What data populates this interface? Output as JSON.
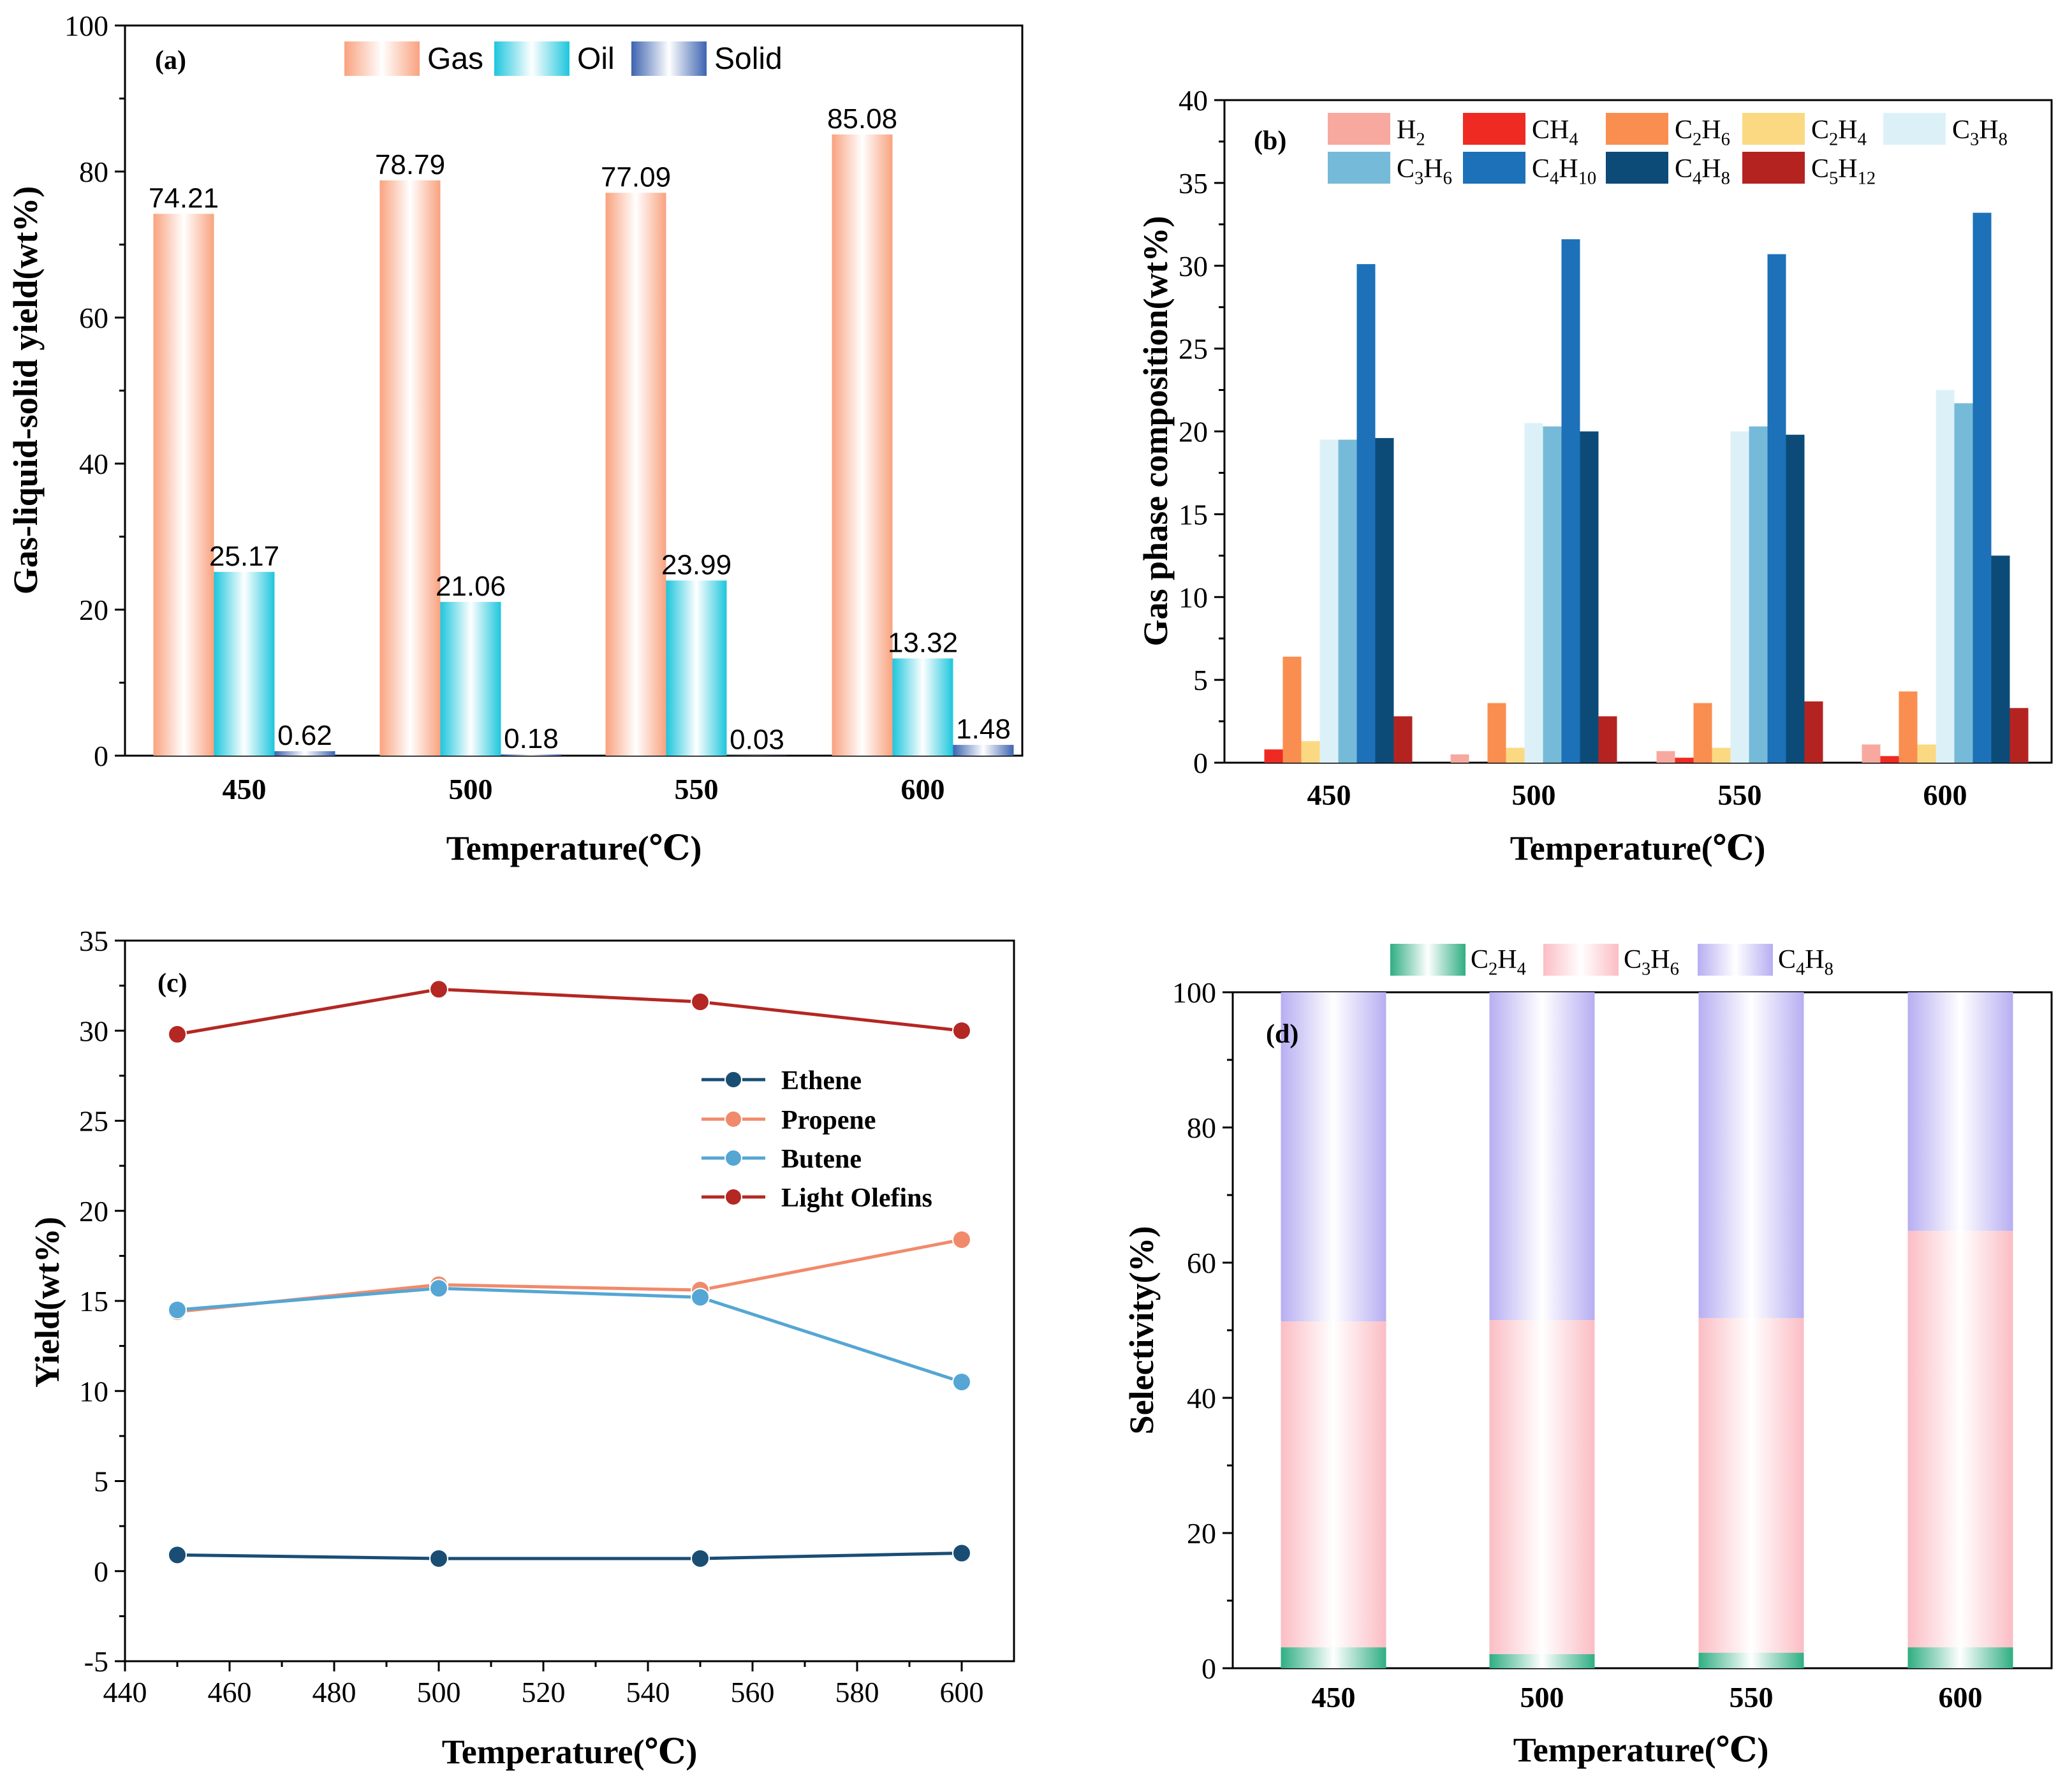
{
  "colors": {
    "gas": "#f9a27f",
    "oil": "#1ec6dd",
    "solid": "#3d64b0",
    "H2": "#f7a9a0",
    "CH4": "#ee2a22",
    "C2H6": "#f98e50",
    "C2H4": "#fbd983",
    "C3H8": "#dcf1f7",
    "C3H6": "#76bad9",
    "C4H10": "#1c71b8",
    "C4H8": "#0c4b78",
    "C5H12": "#b52321",
    "ethene": "#1a4d74",
    "propene": "#f08a6b",
    "butene": "#55a6d4",
    "light_olefins": "#b42723",
    "sel_c2h4": "#2fae82",
    "sel_c3h6": "#fbbdc4",
    "sel_c4h8": "#b7aef2"
  },
  "chart_data": [
    {
      "id": "a",
      "type": "bar",
      "panel_label": "(a)",
      "categories": [
        "450",
        "500",
        "550",
        "600"
      ],
      "series": [
        {
          "name": "Gas",
          "key": "gas",
          "values": [
            74.21,
            78.79,
            77.09,
            85.08
          ],
          "labels": [
            "74.21",
            "78.79",
            "77.09",
            "85.08"
          ]
        },
        {
          "name": "Oil",
          "key": "oil",
          "values": [
            25.17,
            21.06,
            23.99,
            13.32
          ],
          "labels": [
            "25.17",
            "21.06",
            "23.99",
            "13.32"
          ]
        },
        {
          "name": "Solid",
          "key": "solid",
          "values": [
            0.62,
            0.18,
            0.03,
            1.48
          ],
          "labels": [
            "0.62",
            "0.18",
            "0.03",
            "1.48"
          ]
        }
      ],
      "ylim": [
        0,
        100
      ],
      "yticks": [
        "0",
        "20",
        "40",
        "60",
        "80",
        "100"
      ],
      "xlabel": "Temperature(℃)",
      "ylabel": "Gas-liquid-solid yield(wt%)"
    },
    {
      "id": "b",
      "type": "bar",
      "panel_label": "(b)",
      "categories": [
        "450",
        "500",
        "550",
        "600"
      ],
      "series": [
        {
          "name": "H2",
          "base": "H",
          "sub": "2",
          "key": "H2",
          "values": [
            0.0,
            0.5,
            0.7,
            1.1
          ]
        },
        {
          "name": "CH4",
          "base": "CH",
          "sub": "4",
          "key": "CH4",
          "values": [
            0.8,
            0.0,
            0.3,
            0.4
          ]
        },
        {
          "name": "C2H6",
          "base": "C",
          "sub": "2",
          "base2": "H",
          "sub2": "6",
          "key": "C2H6",
          "values": [
            6.4,
            3.6,
            3.6,
            4.3
          ]
        },
        {
          "name": "C2H4",
          "base": "C",
          "sub": "2",
          "base2": "H",
          "sub2": "4",
          "key": "C2H4",
          "values": [
            1.3,
            0.9,
            0.9,
            1.1
          ]
        },
        {
          "name": "C3H8",
          "base": "C",
          "sub": "3",
          "base2": "H",
          "sub2": "8",
          "key": "C3H8",
          "values": [
            19.5,
            20.5,
            20.0,
            22.5
          ]
        },
        {
          "name": "C3H6",
          "base": "C",
          "sub": "3",
          "base2": "H",
          "sub2": "6",
          "key": "C3H6",
          "values": [
            19.5,
            20.3,
            20.3,
            21.7
          ]
        },
        {
          "name": "C4H10",
          "base": "C",
          "sub": "4",
          "base2": "H",
          "sub2": "10",
          "key": "C4H10",
          "values": [
            30.1,
            31.6,
            30.7,
            33.2
          ]
        },
        {
          "name": "C4H8",
          "base": "C",
          "sub": "4",
          "base2": "H",
          "sub2": "8",
          "key": "C4H8",
          "values": [
            19.6,
            20.0,
            19.8,
            12.5
          ]
        },
        {
          "name": "C5H12",
          "base": "C",
          "sub": "5",
          "base2": "H",
          "sub2": "12",
          "key": "C5H12",
          "values": [
            2.8,
            2.8,
            3.7,
            3.3
          ]
        }
      ],
      "ylim": [
        0,
        40
      ],
      "yticks": [
        "0",
        "5",
        "10",
        "15",
        "20",
        "25",
        "30",
        "35",
        "40"
      ],
      "xlabel": "Temperature(℃)",
      "ylabel": "Gas phase composition(wt%)"
    },
    {
      "id": "c",
      "type": "line",
      "panel_label": "(c)",
      "x": [
        450,
        500,
        550,
        600
      ],
      "series": [
        {
          "name": "Ethene",
          "key": "ethene",
          "values": [
            0.9,
            0.7,
            0.7,
            1.0
          ]
        },
        {
          "name": "Propene",
          "key": "propene",
          "values": [
            14.4,
            15.9,
            15.6,
            18.4
          ]
        },
        {
          "name": "Butene",
          "key": "butene",
          "values": [
            14.5,
            15.7,
            15.2,
            10.5
          ]
        },
        {
          "name": "Light Olefins",
          "key": "light_olefins",
          "values": [
            29.8,
            32.3,
            31.6,
            30.0
          ]
        }
      ],
      "xlim": [
        440,
        610
      ],
      "ylim": [
        -5,
        35
      ],
      "xticks": [
        "440",
        "460",
        "480",
        "500",
        "520",
        "540",
        "560",
        "580",
        "600"
      ],
      "yticks": [
        "-5",
        "0",
        "5",
        "10",
        "15",
        "20",
        "25",
        "30",
        "35"
      ],
      "xlabel": "Temperature(℃)",
      "ylabel": "Yield(wt%)"
    },
    {
      "id": "d",
      "type": "stacked_bar",
      "panel_label": "(d)",
      "categories": [
        "450",
        "500",
        "550",
        "600"
      ],
      "series": [
        {
          "name": "C2H4",
          "base": "C",
          "sub": "2",
          "base2": "H",
          "sub2": "4",
          "key": "sel_c2h4",
          "values": [
            3.1,
            2.1,
            2.3,
            3.1
          ]
        },
        {
          "name": "C3H6",
          "base": "C",
          "sub": "3",
          "base2": "H",
          "sub2": "6",
          "key": "sel_c3h6",
          "values": [
            48.2,
            49.4,
            49.5,
            61.6
          ]
        },
        {
          "name": "C4H8",
          "base": "C",
          "sub": "4",
          "base2": "H",
          "sub2": "8",
          "key": "sel_c4h8",
          "values": [
            48.7,
            48.5,
            48.2,
            35.3
          ]
        }
      ],
      "ylim": [
        0,
        100
      ],
      "yticks": [
        "0",
        "20",
        "40",
        "60",
        "80",
        "100"
      ],
      "xlabel": "Temperature(℃)",
      "ylabel": "Selectivity(%)"
    }
  ]
}
